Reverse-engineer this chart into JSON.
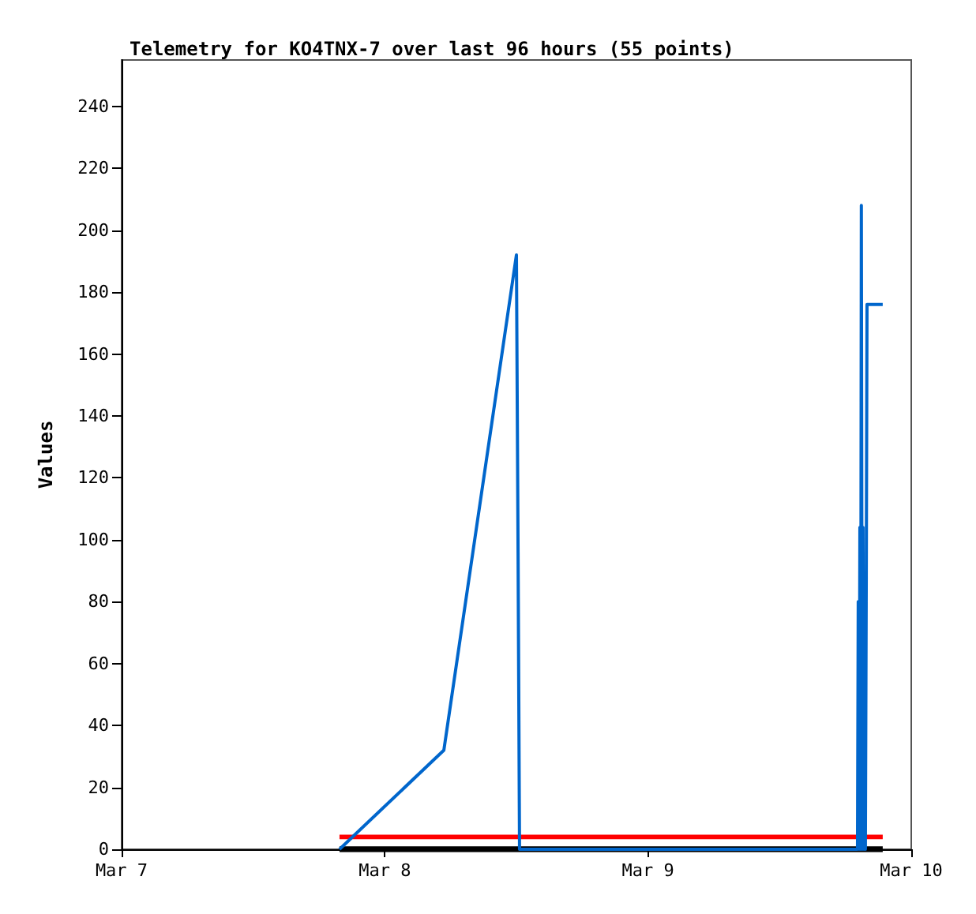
{
  "chart_data": {
    "type": "line",
    "title": "Telemetry for KO4TNX-7 over last 96 hours (55 points)",
    "ylabel": "Values",
    "xlim": [
      "--03-07",
      "--03-10"
    ],
    "xticks": [
      {
        "value": "--03-07",
        "label": "Mar 7"
      },
      {
        "value": "--03-08",
        "label": "Mar 8"
      },
      {
        "value": "--03-09",
        "label": "Mar 9"
      },
      {
        "value": "--03-10",
        "label": "Mar 10"
      }
    ],
    "ylim": [
      0,
      255
    ],
    "yticks": [
      0,
      20,
      40,
      60,
      80,
      100,
      120,
      140,
      160,
      180,
      200,
      220,
      240
    ],
    "grid": false,
    "marker": "none",
    "line_style": "solid",
    "series": [
      {
        "color": "#000000",
        "x": [
          "--03-07T19:52",
          "--03-09T21:24"
        ],
        "values": [
          0,
          0
        ]
      },
      {
        "color": "#ff0000",
        "x": [
          "--03-07T19:52",
          "--03-09T21:24"
        ],
        "values": [
          4,
          4
        ]
      },
      {
        "color": "#0066cc",
        "x": [
          "--03-07T19:52",
          "--03-08T05:23",
          "--03-08T12:00",
          "--03-08T12:09",
          "--03-08T12:17",
          "--03-09T19:06",
          "--03-09T19:10",
          "--03-09T19:15",
          "--03-09T19:19",
          "--03-09T19:23",
          "--03-09T19:27",
          "--03-09T19:32",
          "--03-09T19:36",
          "--03-09T19:41",
          "--03-09T19:45",
          "--03-09T19:49",
          "--03-09T19:54",
          "--03-09T19:58",
          "--03-09T21:24"
        ],
        "values": [
          0,
          32,
          192,
          96,
          0,
          0,
          80,
          0,
          104,
          0,
          208,
          0,
          104,
          0,
          88,
          0,
          88,
          176,
          176
        ]
      }
    ]
  }
}
